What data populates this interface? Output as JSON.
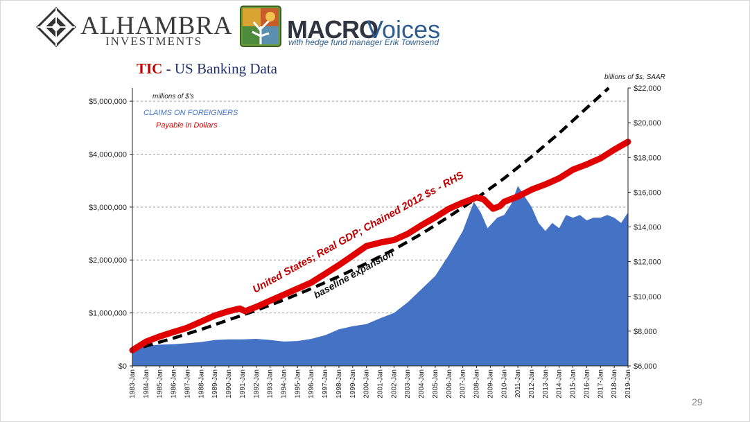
{
  "header": {
    "logo1_name": "ALHAMBRA",
    "logo1_sub": "INVESTMENTS",
    "logo2_macro": "MACRO",
    "logo2_voices": "Voices",
    "logo2_tagline": "with hedge fund manager Erik Townsend"
  },
  "slide": {
    "title_part1": "TIC",
    "title_part2": " - US Banking Data",
    "page_number": "29"
  },
  "colors": {
    "area": "#4472c4",
    "gdp": "#e00000",
    "baseline": "#000000",
    "title_red": "#c00000",
    "title_navy": "#1f2f6b"
  },
  "chart_data": {
    "type": "area",
    "left_axis": {
      "unit_note": "millions of $'s",
      "range": [
        0,
        5250000
      ],
      "ticks": [
        0,
        1000000,
        2000000,
        3000000,
        4000000,
        5000000
      ],
      "tick_labels": [
        "$0",
        "$1,000,000",
        "$2,000,000",
        "$3,000,000",
        "$4,000,000",
        "$5,000,000"
      ]
    },
    "right_axis": {
      "unit_note": "billions of $s, SAAR",
      "range": [
        6000,
        22000
      ],
      "ticks": [
        6000,
        8000,
        10000,
        12000,
        14000,
        16000,
        18000,
        20000,
        22000
      ],
      "tick_labels": [
        "$6,000",
        "$8,000",
        "$10,000",
        "$12,000",
        "$14,000",
        "$16,000",
        "$18,000",
        "$20,000",
        "$22,000"
      ]
    },
    "x_range": [
      1983.0,
      2019.0
    ],
    "x_labels": [
      "1983-Jan",
      "1984-Jan",
      "1985-Jan",
      "1986-Jan",
      "1987-Jan",
      "1988-Jan",
      "1989-Jan",
      "1990-Jan",
      "1991-Jan",
      "1992-Jan",
      "1993-Jan",
      "1994-Jan",
      "1995-Jan",
      "1996-Jan",
      "1997-Jan",
      "1998-Jan",
      "1999-Jan",
      "2000-Jan",
      "2001-Jan",
      "2002-Jan",
      "2003-Jan",
      "2004-Jan",
      "2005-Jan",
      "2006-Jan",
      "2007-Jan",
      "2008-Jan",
      "2009-Jan",
      "2010-Jan",
      "2011-Jan",
      "2012-Jan",
      "2013-Jan",
      "2014-Jan",
      "2015-Jan",
      "2016-Jan",
      "2017-Jan",
      "2018-Jan",
      "2019-Jan"
    ],
    "legend": {
      "claims_line1": "CLAIMS  ON FOREIGNERS",
      "claims_line2": "Payable  in Dollars"
    },
    "annotations": {
      "gdp_label": "United States; Real GDP; Chained 2012 $s - RHS",
      "baseline_label": "baseline expansion"
    },
    "series": [
      {
        "name": "CLAIMS  ON FOREIGNERS Payable  in Dollars",
        "axis": "left",
        "style": "area",
        "points": [
          [
            1983.0,
            370000
          ],
          [
            1984.0,
            380000
          ],
          [
            1985.0,
            400000
          ],
          [
            1986.0,
            410000
          ],
          [
            1987.0,
            430000
          ],
          [
            1988.0,
            450000
          ],
          [
            1989.0,
            490000
          ],
          [
            1990.0,
            500000
          ],
          [
            1991.0,
            500000
          ],
          [
            1992.0,
            510000
          ],
          [
            1993.0,
            490000
          ],
          [
            1994.0,
            460000
          ],
          [
            1995.0,
            470000
          ],
          [
            1996.0,
            510000
          ],
          [
            1997.0,
            580000
          ],
          [
            1998.0,
            690000
          ],
          [
            1999.0,
            750000
          ],
          [
            2000.0,
            790000
          ],
          [
            2001.0,
            900000
          ],
          [
            2002.0,
            1000000
          ],
          [
            2003.0,
            1200000
          ],
          [
            2004.0,
            1450000
          ],
          [
            2005.0,
            1700000
          ],
          [
            2006.0,
            2100000
          ],
          [
            2007.0,
            2550000
          ],
          [
            2007.8,
            3100000
          ],
          [
            2008.3,
            2900000
          ],
          [
            2008.8,
            2600000
          ],
          [
            2009.5,
            2800000
          ],
          [
            2010.0,
            2850000
          ],
          [
            2010.5,
            3050000
          ],
          [
            2011.0,
            3400000
          ],
          [
            2011.5,
            3200000
          ],
          [
            2012.0,
            3000000
          ],
          [
            2012.5,
            2700000
          ],
          [
            2013.0,
            2550000
          ],
          [
            2013.5,
            2700000
          ],
          [
            2014.0,
            2600000
          ],
          [
            2014.5,
            2850000
          ],
          [
            2015.0,
            2800000
          ],
          [
            2015.5,
            2850000
          ],
          [
            2016.0,
            2750000
          ],
          [
            2016.5,
            2800000
          ],
          [
            2017.0,
            2800000
          ],
          [
            2017.5,
            2850000
          ],
          [
            2018.0,
            2800000
          ],
          [
            2018.5,
            2700000
          ],
          [
            2019.0,
            2900000
          ]
        ]
      },
      {
        "name": "United States; Real GDP; Chained 2012 $s - RHS",
        "axis": "right",
        "style": "line",
        "points": [
          [
            1983.0,
            6900
          ],
          [
            1984.0,
            7400
          ],
          [
            1985.0,
            7700
          ],
          [
            1986.0,
            7950
          ],
          [
            1987.0,
            8200
          ],
          [
            1988.0,
            8550
          ],
          [
            1989.0,
            8900
          ],
          [
            1990.0,
            9150
          ],
          [
            1990.8,
            9300
          ],
          [
            1991.2,
            9150
          ],
          [
            1992.0,
            9400
          ],
          [
            1993.0,
            9750
          ],
          [
            1994.0,
            10100
          ],
          [
            1995.0,
            10450
          ],
          [
            1996.0,
            10800
          ],
          [
            1997.0,
            11300
          ],
          [
            1998.0,
            11800
          ],
          [
            1999.0,
            12350
          ],
          [
            2000.0,
            12900
          ],
          [
            2001.0,
            13100
          ],
          [
            2002.0,
            13250
          ],
          [
            2003.0,
            13600
          ],
          [
            2004.0,
            14100
          ],
          [
            2005.0,
            14550
          ],
          [
            2006.0,
            15050
          ],
          [
            2007.0,
            15400
          ],
          [
            2008.0,
            15700
          ],
          [
            2008.5,
            15600
          ],
          [
            2009.2,
            15050
          ],
          [
            2009.7,
            15200
          ],
          [
            2010.0,
            15450
          ],
          [
            2011.0,
            15750
          ],
          [
            2012.0,
            16150
          ],
          [
            2013.0,
            16450
          ],
          [
            2014.0,
            16800
          ],
          [
            2015.0,
            17300
          ],
          [
            2016.0,
            17600
          ],
          [
            2017.0,
            17950
          ],
          [
            2018.0,
            18450
          ],
          [
            2019.0,
            18900
          ]
        ]
      },
      {
        "name": "baseline expansion",
        "axis": "right",
        "style": "dashed",
        "points": [
          [
            1983.8,
            7100
          ],
          [
            1986.0,
            7600
          ],
          [
            1988.0,
            8100
          ],
          [
            1990.0,
            8650
          ],
          [
            1992.0,
            9200
          ],
          [
            1994.0,
            9800
          ],
          [
            1996.0,
            10450
          ],
          [
            1998.0,
            11150
          ],
          [
            2000.0,
            11900
          ],
          [
            2002.0,
            12700
          ],
          [
            2004.0,
            13600
          ],
          [
            2006.0,
            14600
          ],
          [
            2008.0,
            15650
          ],
          [
            2010.0,
            16800
          ],
          [
            2012.0,
            18050
          ],
          [
            2014.0,
            19400
          ],
          [
            2016.0,
            20850
          ],
          [
            2017.6,
            22000
          ]
        ]
      }
    ]
  }
}
